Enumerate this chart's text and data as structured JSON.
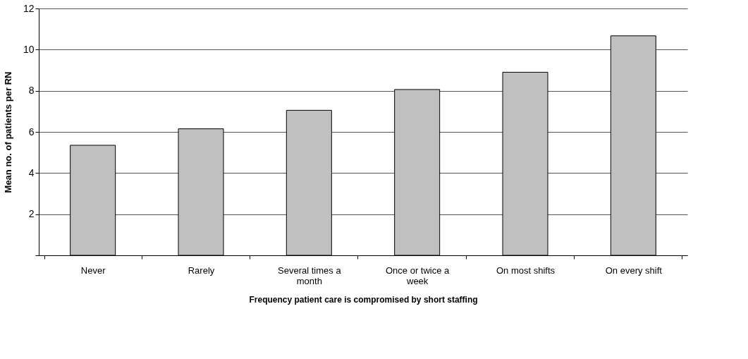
{
  "chart_data": {
    "type": "bar",
    "xlabel": "Frequency patient care is compromised by short staffing",
    "ylabel": "Mean no. of patients per RN",
    "categories": [
      "Never",
      "Rarely",
      "Several times a month",
      "Once or twice a week",
      "On most shifts",
      "On every shift"
    ],
    "values": [
      5.35,
      6.15,
      7.05,
      8.06,
      8.9,
      10.67
    ],
    "color": "#c0c0c0",
    "ylim": [
      0,
      12
    ],
    "yticks": [
      {
        "value": 0,
        "label": null
      },
      2,
      4,
      6,
      8,
      10,
      12
    ],
    "grid": "y"
  }
}
